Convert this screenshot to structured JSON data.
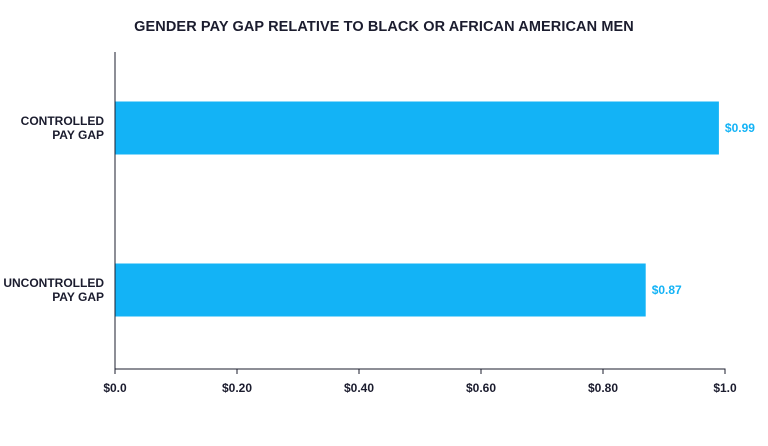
{
  "chart_data": {
    "type": "bar",
    "orientation": "horizontal",
    "title": "GENDER PAY GAP RELATIVE TO BLACK OR AFRICAN AMERICAN MEN",
    "categories": [
      [
        "CONTROLLED",
        "PAY GAP"
      ],
      [
        "UNCONTROLLED",
        "PAY GAP"
      ]
    ],
    "values": [
      0.99,
      0.87
    ],
    "data_labels": [
      "$0.99",
      "$0.87"
    ],
    "xlim": [
      0,
      1.0
    ],
    "xticks": [
      0,
      0.2,
      0.4,
      0.6,
      0.8,
      1.0
    ],
    "xtick_labels": [
      "$0.0",
      "$0.20",
      "$0.40",
      "$0.60",
      "$0.80",
      "$1.0"
    ],
    "xlabel": "",
    "ylabel": "",
    "grid": false,
    "colors": {
      "bar": "#13b3f6",
      "data_label": "#13b3f6",
      "axis": "#1b1c2e",
      "text": "#1b1c2e"
    }
  }
}
